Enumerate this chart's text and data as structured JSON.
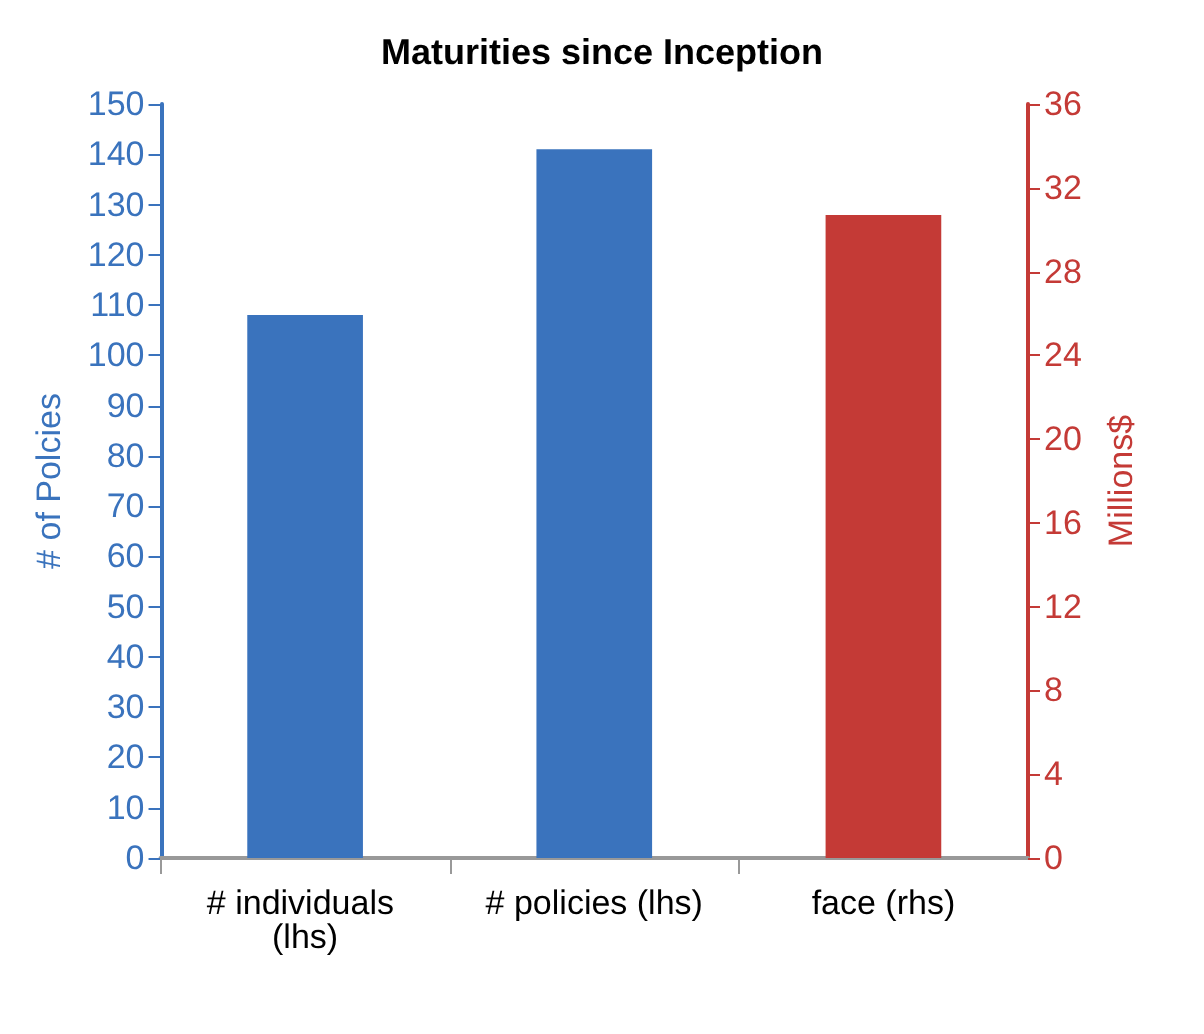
{
  "chart_data": {
    "type": "bar",
    "title": "Maturities since Inception",
    "ylabel": "# of Polcies",
    "y2label": "Millions$",
    "categories": [
      "# individuals (lhs)",
      "# policies (lhs)",
      "face (rhs)"
    ],
    "series": [
      {
        "color": "#3a73bd",
        "values": [
          108,
          141,
          null
        ]
      },
      {
        "color": "#c43a36",
        "axis": "y2",
        "values": [
          null,
          null,
          30.7
        ]
      }
    ],
    "ylim": [
      0,
      150
    ],
    "yticks": [
      0,
      10,
      20,
      30,
      40,
      50,
      60,
      70,
      80,
      90,
      100,
      110,
      120,
      130,
      140,
      150
    ],
    "y2lim": [
      0,
      36
    ],
    "y2ticks": [
      0,
      4,
      8,
      12,
      16,
      20,
      24,
      28,
      32,
      36
    ],
    "grid": false
  }
}
